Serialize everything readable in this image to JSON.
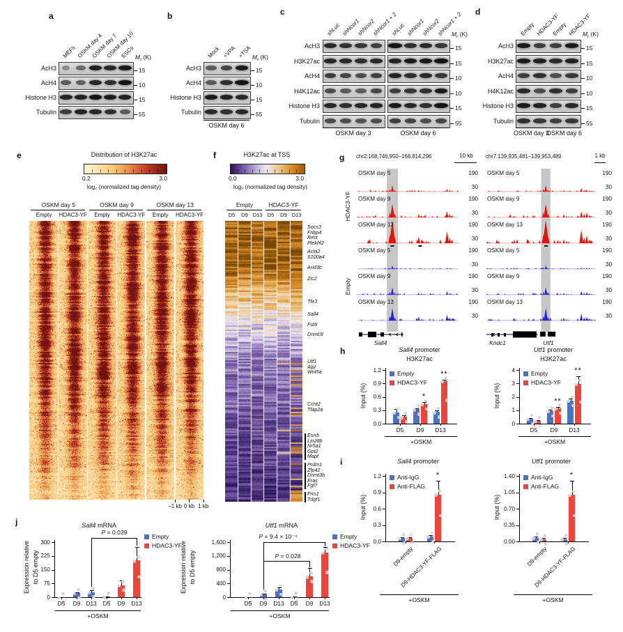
{
  "letters": {
    "a": "a",
    "b": "b",
    "c": "c",
    "d": "d",
    "e": "e",
    "f": "f",
    "g": "g",
    "h": "h",
    "i": "i",
    "j": "j"
  },
  "colors": {
    "empty_blue": "#4a72c4",
    "hdac3yf_red": "#f04438",
    "track_red": "#e81200",
    "track_blue": "#2121dd",
    "band_gray": "#c7c7c7"
  },
  "blots": {
    "a": {
      "lanes": [
        "MEFs",
        "OSKM day 4",
        "OSKM day 7",
        "OSKM day 10",
        "ESCs"
      ],
      "rows": [
        {
          "label": "AcH3",
          "marker": "15",
          "bands": [
            [
              0.15,
              0.4,
              0.9,
              0.85,
              0.95
            ]
          ]
        },
        {
          "label": "AcH4",
          "marker": "10",
          "bands": [
            [
              0.5,
              0.45,
              0.85,
              0.8,
              1.0
            ]
          ]
        },
        {
          "label": "Histone H3",
          "marker": "15",
          "bands": [
            [
              0.9,
              0.9,
              1.0,
              0.95,
              0.9
            ]
          ]
        },
        {
          "label": "Tubulin",
          "marker": "55",
          "bands": [
            [
              0.7,
              0.9,
              0.85,
              0.8,
              0.5
            ]
          ]
        }
      ],
      "mr": {
        "pre": "M",
        "sub": "r",
        "post": " (K)"
      },
      "bottoms": []
    },
    "b": {
      "lanes": [
        "Mock",
        "+VPA",
        "+TSA"
      ],
      "rows": [
        {
          "label": "AcH3",
          "marker": "15",
          "bands": [
            [
              0.5,
              0.65,
              0.95
            ]
          ]
        },
        {
          "label": "AcH4",
          "marker": "10",
          "bands": [
            [
              0.5,
              0.8,
              1.0
            ]
          ]
        },
        {
          "label": "Histone H3",
          "marker": "15",
          "bands": [
            [
              0.95,
              0.9,
              0.85
            ]
          ]
        },
        {
          "label": "Tubulin",
          "marker": "55",
          "bands": [
            [
              0.85,
              0.8,
              0.85
            ]
          ]
        }
      ],
      "mr": {
        "pre": "M",
        "sub": "r",
        "post": " (K)"
      },
      "bottoms": [
        {
          "text": "OSKM day 6"
        }
      ]
    },
    "c": {
      "lane_groups": [
        [
          "shLuc",
          "shNcor1",
          "shNcor2",
          "shNcor1 + 2"
        ],
        [
          "shLuc",
          "shNcor1",
          "shNcor2",
          "shNcor1 + 2"
        ]
      ],
      "rows": [
        {
          "label": "AcH3",
          "marker": "15",
          "bands": [
            [
              0.85,
              0.8,
              0.75,
              0.7
            ],
            [
              1.0,
              0.8,
              0.85,
              0.75
            ]
          ]
        },
        {
          "label": "H3K27ac",
          "marker": "15",
          "bands": [
            [
              0.85,
              0.85,
              0.8,
              0.85
            ],
            [
              0.9,
              0.95,
              0.95,
              1.0
            ]
          ]
        },
        {
          "label": "AcH4",
          "marker": "10",
          "bands": [
            [
              0.7,
              0.65,
              0.6,
              0.7
            ],
            [
              0.9,
              0.8,
              0.85,
              0.75
            ]
          ]
        },
        {
          "label": "H4K12ac",
          "marker": "10",
          "bands": [
            [
              0.6,
              0.5,
              0.5,
              0.65
            ],
            [
              0.7,
              0.75,
              0.8,
              0.95
            ]
          ]
        },
        {
          "label": "Histone H3",
          "marker": "15",
          "bands": [
            [
              0.85,
              0.8,
              0.85,
              0.9
            ],
            [
              0.95,
              0.85,
              0.8,
              1.0
            ]
          ]
        },
        {
          "label": "Tubulin",
          "marker": "55",
          "bands": [
            [
              0.6,
              0.6,
              0.55,
              0.6
            ],
            [
              0.7,
              0.65,
              0.6,
              0.65
            ]
          ]
        }
      ],
      "mr": {
        "pre": "M",
        "sub": "r",
        "post": " (K)"
      },
      "bottoms": [
        {
          "text": "OSKM day 3"
        },
        {
          "text": "OSKM day 6"
        }
      ]
    },
    "d": {
      "lanes": [
        "Empty",
        "HDAC3-YF",
        "Empty",
        "HDAC3-YF"
      ],
      "rows": [
        {
          "label": "AcH3",
          "marker": "15",
          "bands": [
            [
              0.95,
              0.7,
              0.7,
              0.95
            ]
          ]
        },
        {
          "label": "H3K27ac",
          "marker": "15",
          "bands": [
            [
              0.95,
              0.9,
              0.85,
              0.9
            ]
          ]
        },
        {
          "label": "AcH4",
          "marker": "10",
          "bands": [
            [
              0.7,
              0.8,
              0.6,
              0.75
            ]
          ]
        },
        {
          "label": "H4K12ac",
          "marker": "10",
          "bands": [
            [
              0.85,
              0.6,
              0.8,
              0.7
            ]
          ]
        },
        {
          "label": "Histone H3",
          "marker": "15",
          "bands": [
            [
              0.95,
              0.9,
              0.7,
              0.85
            ]
          ]
        },
        {
          "label": "Tubulin",
          "marker": "55",
          "bands": [
            [
              0.8,
              0.75,
              0.7,
              0.75
            ]
          ]
        }
      ],
      "mr": {
        "pre": "M",
        "sub": "r",
        "post": " (K)"
      },
      "bottoms": [
        {
          "text": "OSKM day 3"
        },
        {
          "text": "OSKM day 6"
        }
      ]
    }
  },
  "panel_e": {
    "title": "Distribution of H3K27ac",
    "cb_min": "0.2",
    "cb_max": "3.0",
    "cb_label": "log₂ (normalized tag density)",
    "group_headers": [
      "OSKM day 5",
      "OSKM day 9",
      "OSKM day 13"
    ],
    "col_labels": [
      "Empty",
      "HDAC3-YF",
      "Empty",
      "HDAC3-YF",
      "Empty",
      "HDAC3-YF"
    ],
    "x_axis": [
      "–1 kb",
      "0 kb",
      "1 kb"
    ]
  },
  "panel_f": {
    "title": "H3K27ac at TSS",
    "cb_min": "0.0",
    "cb_max": "3.0",
    "cb_label": "log₂ (normalized tag density)",
    "group_headers": [
      "Empty",
      "HDAC3-YF"
    ],
    "col_labels": [
      "D5",
      "D9",
      "D13",
      "D5",
      "D9",
      "D13"
    ],
    "gene_groups": [
      {
        "y": 322,
        "bar": false,
        "genes": [
          "Socs3",
          "Fnbp4",
          "Rest",
          "Plekhf2"
        ]
      },
      {
        "y": 357,
        "bar": false,
        "genes": [
          "Acta2",
          "S100a4"
        ]
      },
      {
        "y": 380,
        "bar": false,
        "genes": [
          "Arid3b"
        ]
      },
      {
        "y": 396,
        "bar": false,
        "genes": [
          "Zic2"
        ]
      },
      {
        "y": 429,
        "bar": false,
        "genes": [
          "Tfe3"
        ]
      },
      {
        "y": 447,
        "bar": false,
        "genes": [
          "Sall4"
        ]
      },
      {
        "y": 462,
        "bar": false,
        "genes": [
          "Fut9"
        ]
      },
      {
        "y": 476,
        "bar": false,
        "genes": [
          "Dnmt3l"
        ]
      },
      {
        "y": 515,
        "bar": false,
        "genes": [
          "Utf1",
          "Alpl",
          "Wnt5a"
        ]
      },
      {
        "y": 576,
        "bar": false,
        "genes": [
          "Ccnt2",
          "Tfap2a"
        ]
      },
      {
        "y": 621,
        "bar": true,
        "genes": [
          "Esrrb",
          "Lin28b",
          "Nr5a1",
          "Gpt2",
          "Mapt"
        ]
      },
      {
        "y": 663,
        "bar": true,
        "genes": [
          "Prdm1",
          "Zfp42",
          "Dnmt3b",
          "Eras",
          "Fgf7"
        ]
      },
      {
        "y": 705,
        "bar": true,
        "genes": [
          "Frrs1",
          "Tdgf1"
        ]
      }
    ]
  },
  "panel_g": {
    "conditions": [
      "HDAC3-YF",
      "Empty"
    ],
    "track_labels": [
      "OSKM day 5",
      "OSKM day 9",
      "OSKM day 13"
    ],
    "ymax": "190",
    "ymin": "30",
    "loci": [
      {
        "coord": "chr2:168,746,950–168,814,296",
        "scale": "10 kb",
        "genes": [
          "Sall4"
        ]
      },
      {
        "coord": "chr7:139,935,481–139,953,489",
        "scale": "1 kb",
        "genes": [
          "Kndc1",
          "Utf1"
        ]
      }
    ]
  },
  "chart_data": [
    {
      "id": "h-left",
      "type": "bar",
      "title_italic": "Sall4",
      "title_rest": " promoter",
      "subtitle": "H3K27ac",
      "ylabel_lines": [
        "Input (%)"
      ],
      "yticks": [
        "0.0",
        "0.3",
        "0.6",
        "0.9",
        "1.2"
      ],
      "ymax": 1.2,
      "categories": [
        "D5",
        "D9",
        "D13"
      ],
      "series": [
        {
          "name": "Empty",
          "color": "#4a72c4",
          "values": [
            0.25,
            0.32,
            0.26
          ],
          "errors": [
            0.07,
            0.02,
            0.04
          ]
        },
        {
          "name": "HDAC3-YF",
          "color": "#f04438",
          "values": [
            0.15,
            0.44,
            0.95
          ],
          "errors": [
            0.03,
            0.05,
            0.03
          ]
        }
      ],
      "sig": [
        {
          "group": 1,
          "text": "*"
        },
        {
          "group": 2,
          "text": "**"
        }
      ],
      "xnote": "+OSKM"
    },
    {
      "id": "h-right",
      "type": "bar",
      "title_italic": "Utf1",
      "title_rest": " promoter",
      "subtitle": "H3K27ac",
      "ylabel_lines": [
        "Input (%)"
      ],
      "yticks": [
        "0",
        "1",
        "2",
        "3",
        "4"
      ],
      "ymax": 4,
      "categories": [
        "D5",
        "D9",
        "D13"
      ],
      "series": [
        {
          "name": "Empty",
          "color": "#4a72c4",
          "values": [
            0.35,
            0.95,
            1.7
          ],
          "errors": [
            0.08,
            0.07,
            0.15
          ]
        },
        {
          "name": "HDAC3-YF",
          "color": "#f04438",
          "values": [
            0.22,
            1.15,
            2.95
          ],
          "errors": [
            0.05,
            0.08,
            0.6
          ]
        }
      ],
      "sig": [
        {
          "group": 1,
          "text": "**"
        },
        {
          "group": 2,
          "text": "**"
        }
      ],
      "xnote": "+OSKM"
    },
    {
      "id": "i-left",
      "type": "bar",
      "title_italic": "Sall4",
      "title_rest": " promoter",
      "ylabel_lines": [
        "Input (%)"
      ],
      "yticks": [
        "0.0",
        "0.3",
        "0.6",
        "0.9",
        "1.2"
      ],
      "ymax": 1.2,
      "categories": [
        "D9-empty",
        "D9-HDAC3-YF-FLAG"
      ],
      "series": [
        {
          "name": "Anti-IgG",
          "color": "#4a72c4",
          "values": [
            0.06,
            0.09
          ],
          "errors": [
            0.02,
            0.03
          ]
        },
        {
          "name": "Anti-FLAG",
          "color": "#f04438",
          "values": [
            0.06,
            0.86
          ],
          "errors": [
            0.02,
            0.25
          ]
        }
      ],
      "sig": [
        {
          "group": 1,
          "text": "*"
        }
      ],
      "xnote": "+OSKM"
    },
    {
      "id": "i-right",
      "type": "bar",
      "title_italic": "Utf1",
      "title_rest": " promoter",
      "ylabel_lines": [
        "Input (%)"
      ],
      "yticks": [
        "0.00",
        "0.35",
        "0.70",
        "1.05",
        "1.40"
      ],
      "ymax": 1.4,
      "categories": [
        "D9-empty",
        "D9-HDAC3-YF-FLAG"
      ],
      "series": [
        {
          "name": "Anti-IgG",
          "color": "#4a72c4",
          "values": [
            0.08,
            0.05
          ],
          "errors": [
            0.02,
            0.02
          ]
        },
        {
          "name": "Anti-FLAG",
          "color": "#f04438",
          "values": [
            0.05,
            1.0
          ],
          "errors": [
            0.02,
            0.3
          ]
        }
      ],
      "sig": [
        {
          "group": 1,
          "text": "*"
        }
      ],
      "xnote": "+OSKM"
    },
    {
      "id": "j-left",
      "type": "bar",
      "title_italic": "Sall4",
      "title_rest": " mRNA",
      "ylabel_lines": [
        "Expression relative",
        "to D5 empty"
      ],
      "yticks": [
        "0",
        "75",
        "150",
        "225",
        "300"
      ],
      "ymax": 300,
      "categories": [
        "D5",
        "D9",
        "D13",
        "D5",
        "D9",
        "D13"
      ],
      "values": [
        1,
        22,
        28,
        2,
        65,
        200
      ],
      "errors": [
        0.5,
        6,
        10,
        1,
        28,
        75
      ],
      "bar_colors": [
        "#4a72c4",
        "#4a72c4",
        "#4a72c4",
        "#f04438",
        "#f04438",
        "#f04438"
      ],
      "legend": [
        {
          "name": "Empty",
          "color": "#4a72c4"
        },
        {
          "name": "HDAC3-YF",
          "color": "#f04438"
        }
      ],
      "brackets": [
        {
          "label": "P = 0.039"
        }
      ],
      "xnote": "+OSKM"
    },
    {
      "id": "j-right",
      "type": "bar",
      "title_italic": "Utf1",
      "title_rest": " mRNA",
      "ylabel_lines": [
        "Expression relative",
        "to D5 empty"
      ],
      "yticks": [
        "0",
        "400",
        "800",
        "1,200",
        "1,600"
      ],
      "ymax": 1600,
      "categories": [
        "D5",
        "D9",
        "D13",
        "D5",
        "D9",
        "D13"
      ],
      "values": [
        5,
        80,
        220,
        10,
        600,
        1300
      ],
      "errors": [
        2,
        20,
        60,
        4,
        250,
        150
      ],
      "bar_colors": [
        "#4a72c4",
        "#4a72c4",
        "#4a72c4",
        "#f04438",
        "#f04438",
        "#f04438"
      ],
      "legend": [
        {
          "name": "Empty",
          "color": "#4a72c4"
        },
        {
          "name": "HDAC3-YF",
          "color": "#f04438"
        }
      ],
      "brackets": [
        {
          "label": "P = 0.028"
        },
        {
          "label": "P = 9.4 × 10⁻⁴"
        }
      ],
      "xnote": "+OSKM"
    }
  ]
}
